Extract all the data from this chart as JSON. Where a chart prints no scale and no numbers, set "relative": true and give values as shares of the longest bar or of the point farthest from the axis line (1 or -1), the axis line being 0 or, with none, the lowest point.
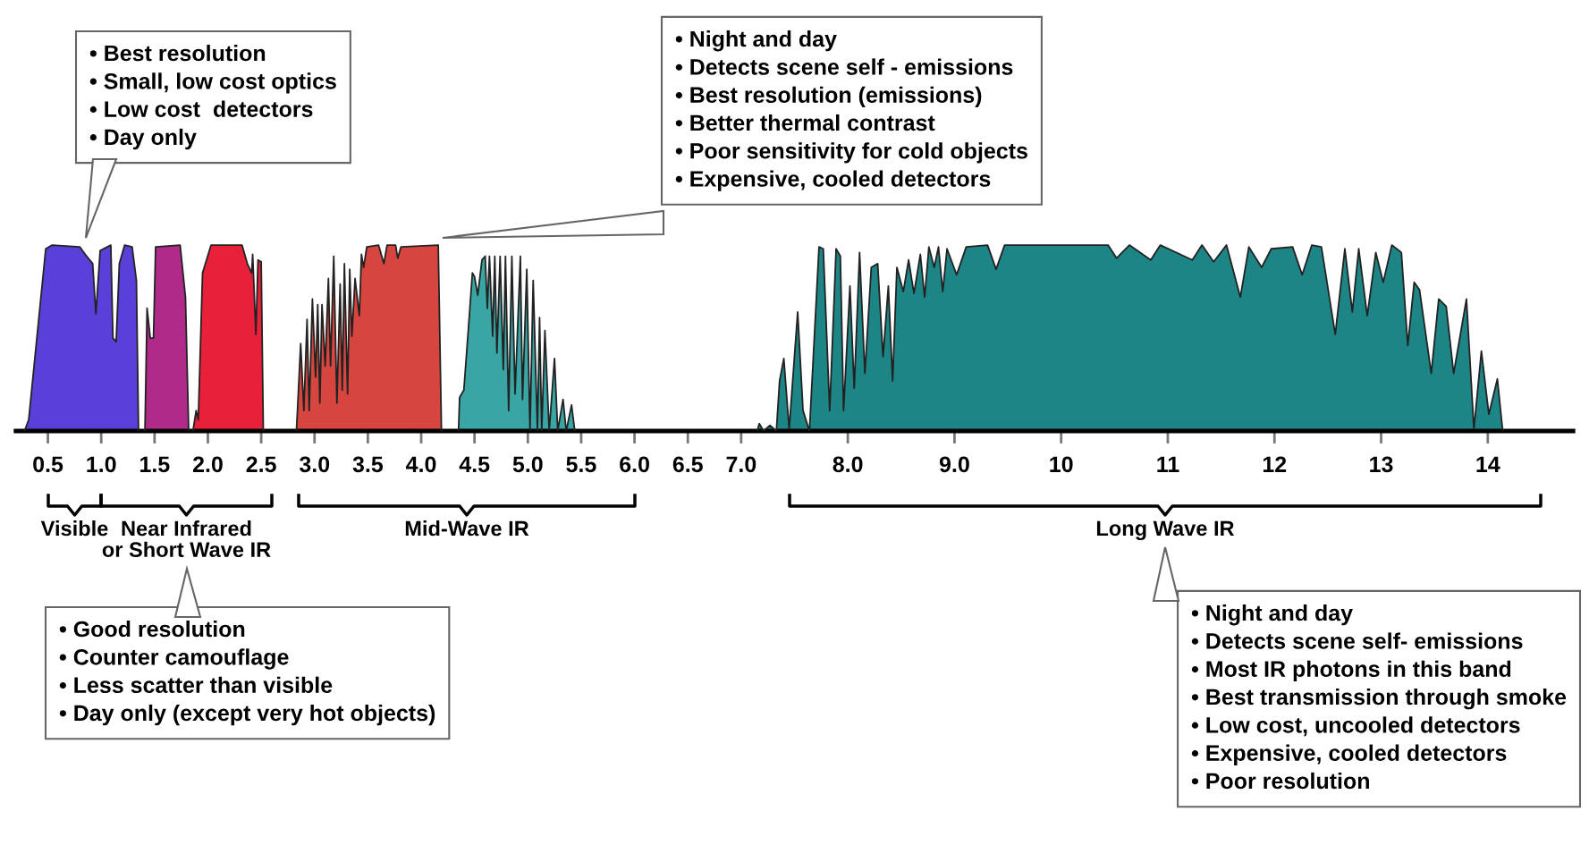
{
  "chart_data": {
    "type": "area",
    "relative": true,
    "xlim": [
      0.2,
      14.8
    ],
    "xticks": [
      0.5,
      {
        "value": 1,
        "label": "1.0"
      },
      1.5,
      {
        "value": 2,
        "label": "2.0"
      },
      2.5,
      {
        "value": 3,
        "label": "3.0"
      },
      3.5,
      {
        "value": 4,
        "label": "4.0"
      },
      4.5,
      {
        "value": 5,
        "label": "5.0"
      },
      5.5,
      {
        "value": 6,
        "label": "6.0"
      },
      6.5,
      {
        "value": 7,
        "label": "7.0"
      },
      {
        "value": 8,
        "label": "8.0"
      },
      {
        "value": 9,
        "label": "9.0"
      },
      10,
      11,
      12,
      13,
      14
    ],
    "series": [
      {
        "color": "#5a40d8",
        "x": [
          0.28,
          0.32,
          0.48,
          0.54,
          0.8,
          0.85,
          0.92,
          0.95,
          0.99,
          1.09,
          1.11,
          1.14,
          1.17,
          1.22,
          1.29,
          1.33,
          1.35
        ],
        "values": [
          0,
          0.06,
          0.98,
          1.0,
          0.99,
          0.95,
          0.9,
          0.63,
          0.97,
          1.0,
          0.5,
          0.48,
          0.9,
          1.0,
          0.99,
          0.81,
          0
        ]
      },
      {
        "color": "#b02a8a",
        "x": [
          1.41,
          1.43,
          1.46,
          1.49,
          1.51,
          1.74,
          1.79,
          1.82
        ],
        "values": [
          0,
          0.66,
          0.5,
          0.5,
          0.99,
          1.0,
          0.72,
          0
        ]
      },
      {
        "color": "#e8203a",
        "x": [
          1.86,
          1.89,
          1.91,
          1.95,
          2.03,
          2.32,
          2.37,
          2.41,
          2.42,
          2.45,
          2.47,
          2.5,
          2.52
        ],
        "values": [
          0,
          0.11,
          0.06,
          0.85,
          1.0,
          1.0,
          0.9,
          0.85,
          0.95,
          0.52,
          0.92,
          0.91,
          0
        ]
      },
      {
        "color": "#d6463f",
        "x": [
          2.83,
          2.84,
          2.87,
          2.9,
          2.93,
          2.95,
          2.98,
          3.01,
          3.03,
          3.05,
          3.07,
          3.1,
          3.13,
          3.15,
          3.18,
          3.21,
          3.24,
          3.26,
          3.28,
          3.31,
          3.33,
          3.35,
          3.38,
          3.42,
          3.44,
          3.46,
          3.49,
          3.6,
          3.65,
          3.68,
          3.76,
          3.78,
          3.81,
          4.16,
          4.19
        ],
        "values": [
          0,
          0.11,
          0.47,
          0.11,
          0.6,
          0.11,
          0.71,
          0.29,
          0.68,
          0.15,
          0.68,
          0.35,
          0.82,
          0.35,
          0.94,
          0.15,
          0.79,
          0.22,
          0.9,
          0.2,
          0.87,
          0.51,
          0.82,
          0.62,
          0.95,
          0.88,
          0.99,
          1.0,
          0.9,
          1.0,
          1.0,
          0.93,
          0.99,
          1.0,
          0
        ]
      },
      {
        "color": "#3aa5a5",
        "x": [
          4.35,
          4.36,
          4.4,
          4.44,
          4.48,
          4.5,
          4.53,
          4.57,
          4.6,
          4.62,
          4.64,
          4.67,
          4.69,
          4.71,
          4.74,
          4.77,
          4.79,
          4.82,
          4.85,
          4.88,
          4.93,
          4.95,
          4.99,
          5.02,
          5.05,
          5.09,
          5.11,
          5.13,
          5.16,
          5.2,
          5.25,
          5.28,
          5.33,
          5.36,
          5.41,
          5.44
        ],
        "values": [
          0,
          0.18,
          0.22,
          0.53,
          0.85,
          0.83,
          0.73,
          0.92,
          0.94,
          0.66,
          0.94,
          0.51,
          0.94,
          0.42,
          0.94,
          0.33,
          0.94,
          0.11,
          0.94,
          0.2,
          0.94,
          0.17,
          0.87,
          0,
          0.81,
          0,
          0.61,
          0,
          0.54,
          0,
          0.39,
          0,
          0.17,
          0,
          0.14,
          0
        ]
      },
      {
        "color": "#1d8585",
        "x": [
          7.15,
          7.17,
          7.21,
          7.27,
          7.33,
          7.36,
          7.4,
          7.45,
          7.53,
          7.58,
          7.64,
          7.73,
          7.77,
          7.83,
          7.89,
          7.93,
          7.96,
          8.02,
          8.06,
          8.11,
          8.16,
          8.22,
          8.28,
          8.33,
          8.38,
          8.42,
          8.46,
          8.52,
          8.57,
          8.62,
          8.68,
          8.72,
          8.76,
          8.81,
          8.85,
          8.89,
          8.93,
          9.02,
          9.11,
          9.31,
          9.39,
          9.47,
          10.44,
          10.52,
          10.64,
          10.84,
          10.93,
          11.23,
          11.32,
          11.43,
          11.55,
          11.68,
          11.76,
          11.88,
          11.97,
          12.17,
          12.26,
          12.35,
          12.44,
          12.57,
          12.66,
          12.73,
          12.79,
          12.87,
          12.95,
          13.02,
          13.1,
          13.19,
          13.25,
          13.31,
          13.36,
          13.47,
          13.54,
          13.61,
          13.68,
          13.8,
          13.87,
          13.94,
          14.01,
          14.09,
          14.14
        ],
        "values": [
          0,
          0.04,
          0,
          0.03,
          0,
          0.27,
          0.39,
          0.01,
          0.64,
          0.11,
          0,
          0.99,
          0.98,
          0.11,
          0.98,
          0.94,
          0.11,
          0.78,
          0.23,
          0.96,
          0.31,
          0.88,
          0.9,
          0.4,
          0.78,
          0.27,
          0.88,
          0.75,
          0.92,
          0.74,
          0.95,
          0.72,
          0.99,
          0.88,
          0.99,
          0.75,
          0.98,
          0.84,
          0.99,
          1.0,
          0.87,
          1.0,
          1.0,
          0.93,
          1.0,
          0.92,
          1.0,
          0.92,
          1.0,
          0.91,
          1.0,
          0.72,
          0.99,
          0.88,
          0.98,
          0.99,
          0.84,
          1.0,
          0.99,
          0.52,
          0.98,
          0.64,
          0.98,
          0.62,
          0.96,
          0.8,
          1.0,
          0.96,
          0.46,
          0.8,
          0.76,
          0.31,
          0.71,
          0.67,
          0.31,
          0.71,
          0.01,
          0.43,
          0.09,
          0.28,
          0
        ]
      }
    ],
    "annotations": [
      "• Best resolution\n• Small, low cost optics\n• Low cost  detectors\n• Day only",
      "• Night and day\n• Detects scene self - emissions\n• Best resolution (emissions)\n• Better thermal contrast\n• Poor sensitivity for cold objects\n• Expensive, cooled detectors",
      "• Good resolution\n• Counter camouflage\n• Less scatter than visible\n• Day only (except very hot objects)",
      "• Night and day\n• Detects scene self- emissions\n• Most IR photons in this band\n• Best transmission through smoke\n• Low cost, uncooled detectors\n• Expensive, cooled detectors\n• Poor resolution",
      "Visible",
      "Near Infrared\nor Short Wave IR",
      "Mid-Wave IR",
      "Long Wave IR"
    ]
  }
}
